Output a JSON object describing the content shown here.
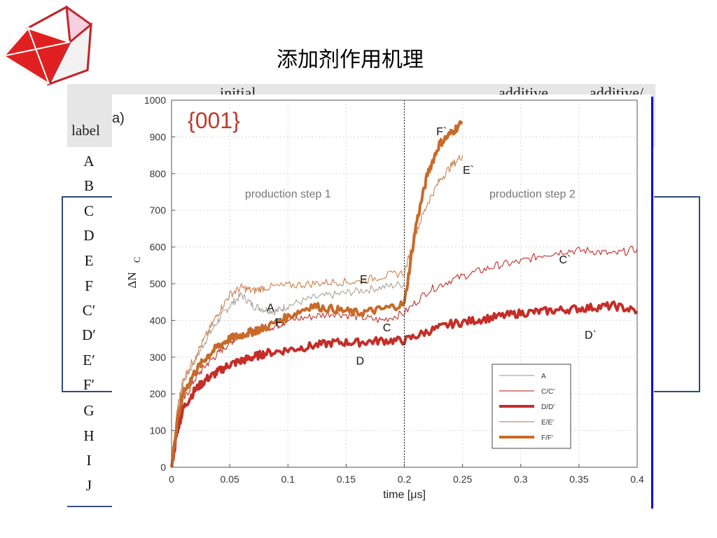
{
  "slide": {
    "title": "添加剂作用机理"
  },
  "table": {
    "label_header": "label",
    "col_header_initial": "initial",
    "col_header_additive": "additive",
    "col_header_additive2": "additive/",
    "labels": [
      "A",
      "B",
      "C",
      "D",
      "E",
      "F",
      "C′",
      "D′",
      "E′",
      "F′",
      "G",
      "H",
      "I",
      "J"
    ]
  },
  "chart_data": {
    "type": "line",
    "panel_label": "a)",
    "facet_label": "{001}",
    "xlabel": "time [μs]",
    "ylabel": "ΔN",
    "ylabel_sub": "C",
    "xlim": [
      0,
      0.4
    ],
    "ylim": [
      0,
      1000
    ],
    "x_ticks": [
      "0",
      "0.05",
      "0.1",
      "0.15",
      "0.2",
      "0.25",
      "0.3",
      "0.35",
      "0.4"
    ],
    "y_ticks": [
      "0",
      "100",
      "200",
      "300",
      "400",
      "500",
      "600",
      "700",
      "800",
      "900",
      "1000"
    ],
    "x_tick_values": [
      0,
      0.05,
      0.1,
      0.15,
      0.2,
      0.25,
      0.3,
      0.35,
      0.4
    ],
    "y_tick_values": [
      0,
      100,
      200,
      300,
      400,
      500,
      600,
      700,
      800,
      900,
      1000
    ],
    "vline_x": 0.2,
    "grid": true,
    "region_labels": [
      {
        "text": "production step 1",
        "x": 0.1,
        "y": 735
      },
      {
        "text": "production step 2",
        "x": 0.31,
        "y": 735
      }
    ],
    "annotations": [
      {
        "text": "A",
        "x": 0.085,
        "y": 425
      },
      {
        "text": "F",
        "x": 0.092,
        "y": 385
      },
      {
        "text": "E",
        "x": 0.165,
        "y": 502
      },
      {
        "text": "C",
        "x": 0.185,
        "y": 370
      },
      {
        "text": "D",
        "x": 0.162,
        "y": 280
      },
      {
        "text": "F`",
        "x": 0.232,
        "y": 905
      },
      {
        "text": "E`",
        "x": 0.255,
        "y": 800
      },
      {
        "text": "C`",
        "x": 0.338,
        "y": 555
      },
      {
        "text": "D`",
        "x": 0.36,
        "y": 350
      }
    ],
    "series": [
      {
        "name": "A",
        "color": "#b0a8a0",
        "width": 1.2,
        "x": [
          0,
          0.005,
          0.01,
          0.02,
          0.03,
          0.04,
          0.05,
          0.06,
          0.07,
          0.08,
          0.09,
          0.1,
          0.12,
          0.14,
          0.16,
          0.18,
          0.2
        ],
        "y": [
          0,
          150,
          230,
          290,
          350,
          400,
          440,
          470,
          440,
          430,
          425,
          440,
          460,
          470,
          480,
          490,
          500
        ]
      },
      {
        "name": "C/C′",
        "color": "#c0403a",
        "width": 1.2,
        "x": [
          0,
          0.005,
          0.01,
          0.02,
          0.03,
          0.04,
          0.05,
          0.06,
          0.07,
          0.08,
          0.09,
          0.1,
          0.12,
          0.14,
          0.16,
          0.18,
          0.2,
          0.22,
          0.24,
          0.26,
          0.28,
          0.3,
          0.32,
          0.34,
          0.36,
          0.38,
          0.4
        ],
        "y": [
          0,
          120,
          180,
          240,
          280,
          310,
          340,
          360,
          370,
          380,
          385,
          400,
          410,
          420,
          410,
          400,
          420,
          480,
          510,
          530,
          550,
          560,
          580,
          590,
          590,
          580,
          595
        ]
      },
      {
        "name": "D/D′",
        "color": "#c42e28",
        "width": 4,
        "x": [
          0,
          0.005,
          0.01,
          0.02,
          0.03,
          0.04,
          0.05,
          0.06,
          0.07,
          0.08,
          0.1,
          0.12,
          0.14,
          0.16,
          0.18,
          0.2,
          0.22,
          0.24,
          0.26,
          0.28,
          0.3,
          0.32,
          0.34,
          0.36,
          0.38,
          0.4
        ],
        "y": [
          0,
          100,
          160,
          210,
          240,
          260,
          280,
          290,
          300,
          310,
          320,
          330,
          340,
          340,
          345,
          345,
          370,
          390,
          400,
          410,
          420,
          425,
          430,
          435,
          440,
          425
        ]
      },
      {
        "name": "E/E′",
        "color": "#d0895a",
        "width": 1.2,
        "x": [
          0,
          0.005,
          0.01,
          0.02,
          0.03,
          0.04,
          0.05,
          0.06,
          0.07,
          0.08,
          0.1,
          0.12,
          0.14,
          0.16,
          0.18,
          0.2,
          0.21,
          0.22,
          0.23,
          0.24,
          0.25
        ],
        "y": [
          0,
          160,
          240,
          300,
          360,
          420,
          470,
          490,
          480,
          490,
          495,
          500,
          505,
          505,
          520,
          530,
          640,
          720,
          780,
          820,
          850
        ]
      },
      {
        "name": "F/F′",
        "color": "#c86a28",
        "width": 4,
        "x": [
          0,
          0.005,
          0.01,
          0.02,
          0.03,
          0.04,
          0.05,
          0.06,
          0.07,
          0.08,
          0.1,
          0.12,
          0.14,
          0.16,
          0.18,
          0.2,
          0.21,
          0.22,
          0.23,
          0.24,
          0.25
        ],
        "y": [
          0,
          130,
          200,
          260,
          300,
          330,
          350,
          360,
          370,
          380,
          410,
          440,
          430,
          420,
          430,
          445,
          660,
          800,
          880,
          910,
          940
        ]
      }
    ],
    "legend": {
      "position": "bottom-right"
    }
  }
}
